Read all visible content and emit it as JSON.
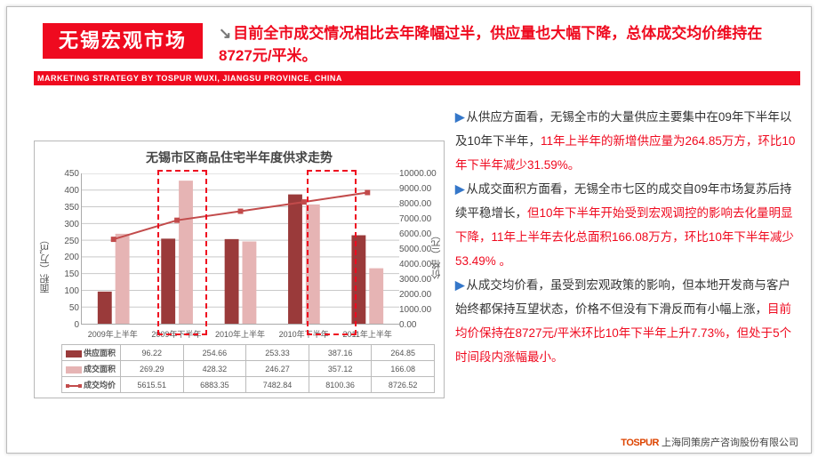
{
  "header": {
    "title_band": "无锡宏观市场",
    "headline_black1": "目前全市成交情况相比去年降幅过半，供应量也大幅下降，总体成交均价维持在",
    "headline_red": "8727元/平米",
    "headline_black2": "。",
    "red_strip": "MARKETING STRATEGY BY TOSPUR WUXI, JIANGSU PROVINCE, CHINA"
  },
  "chart": {
    "title": "无锡市区商品住宅半年度供求走势",
    "y1_label": "面积（万㎡）",
    "y2_label": "价格（元）",
    "y1_ticks": [
      "0",
      "50",
      "100",
      "150",
      "200",
      "250",
      "300",
      "350",
      "400",
      "450"
    ],
    "y2_ticks": [
      "0.00",
      "1000.00",
      "2000.00",
      "3000.00",
      "4000.00",
      "5000.00",
      "6000.00",
      "7000.00",
      "8000.00",
      "9000.00",
      "10000.00"
    ],
    "y1_max": 450,
    "y2_max": 10000,
    "categories": [
      "2009年上半年",
      "2009年下半年",
      "2010年上半年",
      "2010年下半年",
      "2011年上半年"
    ],
    "series": {
      "supply": {
        "label": "供应面积",
        "color": "#9a3a3a",
        "values": [
          96.22,
          254.66,
          253.33,
          387.16,
          264.85
        ]
      },
      "deal": {
        "label": "成交面积",
        "color": "#e6b4b4",
        "values": [
          269.29,
          428.32,
          246.27,
          357.12,
          166.08
        ]
      },
      "price": {
        "label": "成交均价",
        "color": "#c24b4b",
        "values": [
          5615.51,
          6883.35,
          7482.84,
          8100.36,
          8726.52
        ]
      }
    },
    "highlight_idx": [
      1,
      3
    ]
  },
  "copy": {
    "p1a": "从供应方面看，无锡全市的大量供应主要集中在09年下半年以及10年下半年，",
    "p1r": "11年上半年的新增供应量为264.85万方，环比10年下半年减少31.59%。",
    "p2a": "从成交面积方面看，无锡全市七区的成交自09年市场复苏后持续平稳增长，",
    "p2r": "但10年下半年开始受到宏观调控的影响去化量明显下降，11年上半年去化总面积166.08万方，环比10年下半年减少53.49% 。",
    "p3a": "从成交均价看，虽受到宏观政策的影响，但本地开发商与客户始终都保持互望状态，价格不但没有下滑反而有小幅上涨，",
    "p3r": "目前均价保持在8727元/平米环比10年下半年上升7.73%，但处于5个时间段内涨幅最小。"
  },
  "footer": {
    "brand": "TOSPUR",
    "company": "上海同策房产咨询股份有限公司"
  }
}
